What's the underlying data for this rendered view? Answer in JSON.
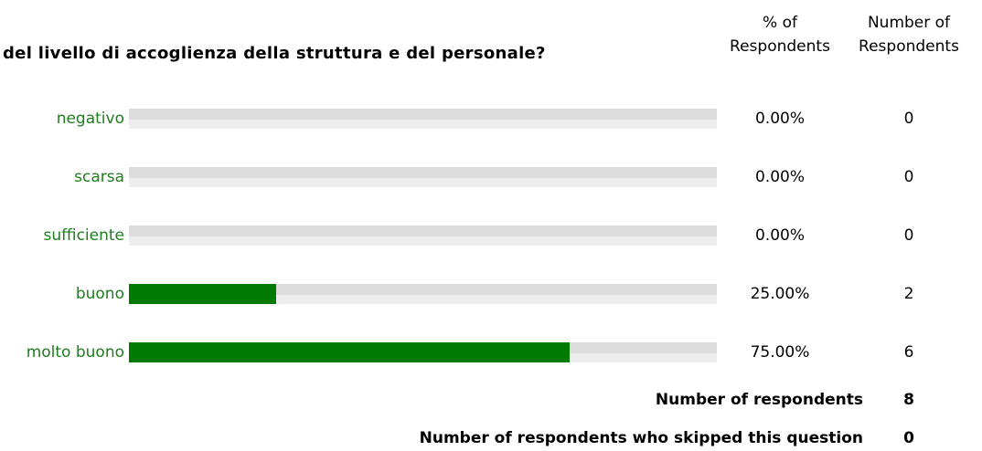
{
  "question": "del livello di accoglienza della struttura e del personale?",
  "headers": {
    "pct": [
      "% of",
      "Respondents"
    ],
    "num": [
      "Number of",
      "Respondents"
    ]
  },
  "colors": {
    "fill": "#007a00",
    "label": "#1e7e1e",
    "track_a": "#dcdcdc",
    "track_b": "#eeeeee"
  },
  "chart_data": {
    "type": "bar",
    "orientation": "horizontal",
    "categories": [
      "negativo",
      "scarsa",
      "sufficiente",
      "buono",
      "molto buono"
    ],
    "values": [
      0,
      0,
      0,
      25,
      75
    ],
    "percent_labels": [
      "0.00%",
      "0.00%",
      "0.00%",
      "25.00%",
      "75.00%"
    ],
    "counts": [
      0,
      0,
      0,
      2,
      6
    ],
    "xlim": [
      0,
      100
    ]
  },
  "totals": {
    "respondents_label": "Number of respondents",
    "respondents_value": "8",
    "skipped_label": "Number of respondents who skipped this question",
    "skipped_value": "0"
  }
}
